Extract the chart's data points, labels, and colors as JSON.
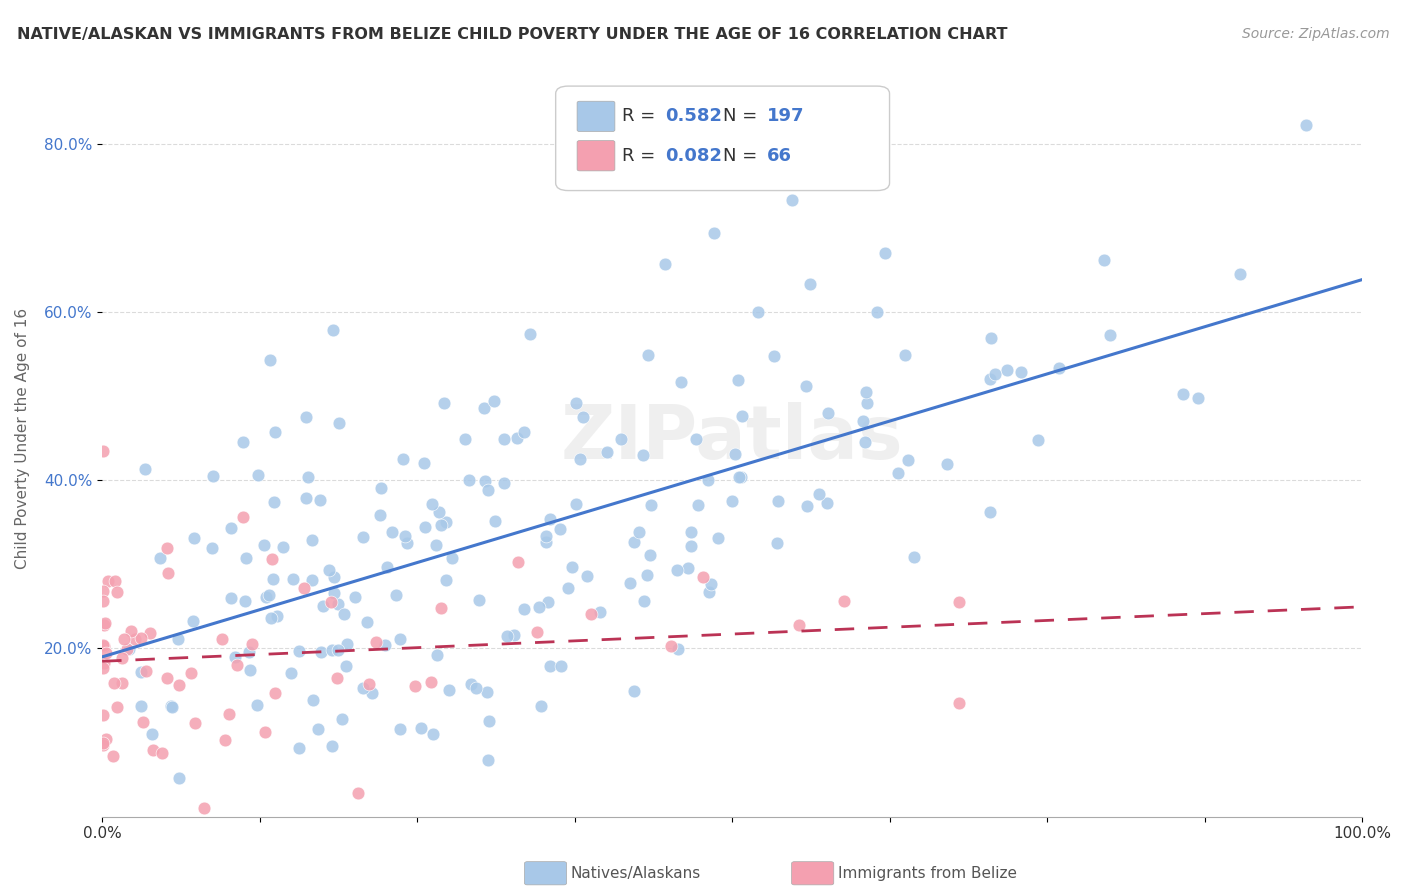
{
  "title": "NATIVE/ALASKAN VS IMMIGRANTS FROM BELIZE CHILD POVERTY UNDER THE AGE OF 16 CORRELATION CHART",
  "source": "Source: ZipAtlas.com",
  "ylabel": "Child Poverty Under the Age of 16",
  "yticks": [
    "20.0%",
    "40.0%",
    "60.0%",
    "80.0%"
  ],
  "ytick_vals": [
    0.2,
    0.4,
    0.6,
    0.8
  ],
  "xlim": [
    0.0,
    1.0
  ],
  "ylim": [
    0.0,
    0.9
  ],
  "native_R": 0.582,
  "native_N": 197,
  "belize_R": 0.082,
  "belize_N": 66,
  "native_color": "#a8c8e8",
  "belize_color": "#f4a0b0",
  "native_line_color": "#4477cc",
  "belize_line_color": "#bb3355",
  "legend_text_color": "#4477cc",
  "background_color": "#ffffff",
  "watermark": "ZIPatlas"
}
